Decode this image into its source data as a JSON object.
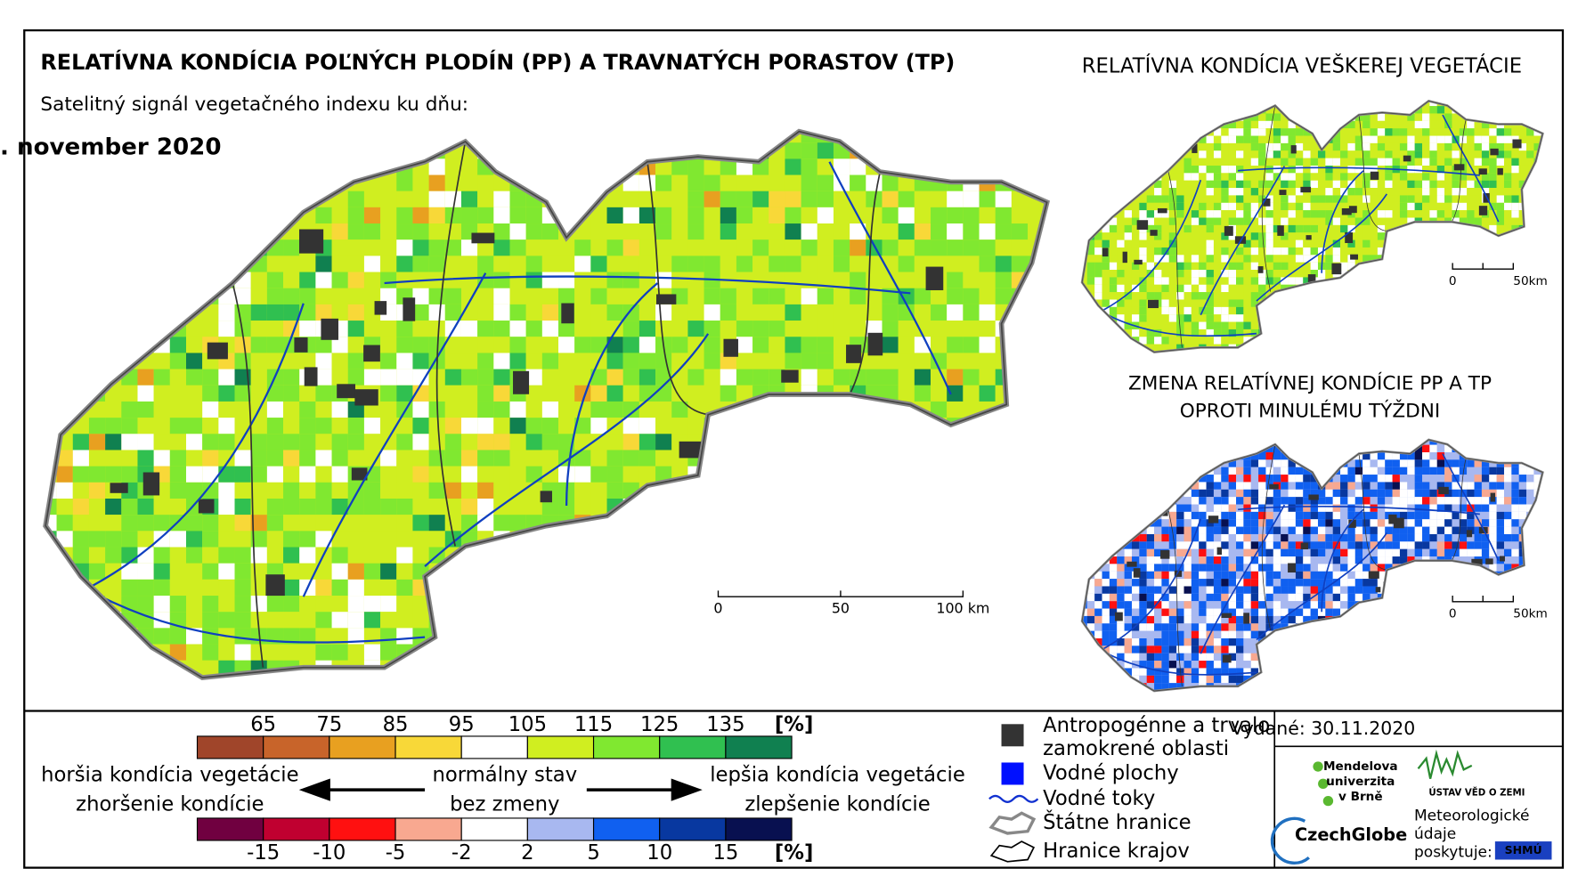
{
  "header": {
    "title": "RELATÍVNA KONDÍCIA POĽNÝCH PLODÍN (PP) A TRAVNATÝCH PORASTOV (TP)",
    "subtitle": "Satelitný signál vegetačného indexu ku dňu:",
    "date": ". november 2020"
  },
  "main_scale": [
    "0",
    "50",
    "100 km"
  ],
  "inset_top": {
    "title": "RELATÍVNA KONDÍCIA VEŠKEREJ VEGETÁCIE",
    "scale": [
      "0",
      "50km"
    ]
  },
  "inset_bottom": {
    "title": [
      "ZMENA RELATÍVNEJ KONDÍCIE PP A TP",
      "OPROTI MINULÉMU TÝŽDNI"
    ],
    "scale": [
      "0",
      "50km"
    ]
  },
  "legend": {
    "condition": {
      "ticks": [
        65,
        75,
        85,
        95,
        105,
        115,
        125,
        135
      ],
      "unit": "[%]",
      "colors": [
        "#a0452a",
        "#c8642a",
        "#e8a020",
        "#f8d838",
        "#ffffff",
        "#d0ee20",
        "#80e830",
        "#30c050",
        "#108050"
      ]
    },
    "change": {
      "ticks": [
        -15,
        -10,
        -5,
        -2,
        2,
        5,
        10,
        15
      ],
      "unit": "[%]",
      "colors": [
        "#700040",
        "#c00030",
        "#ff1010",
        "#f8a890",
        "#ffffff",
        "#a8b8f0",
        "#1060f0",
        "#0838a0",
        "#081050"
      ]
    },
    "left": [
      "horšia kondícia vegetácie",
      "zhoršenie kondície"
    ],
    "center": [
      "normálny stav",
      "bez zmeny"
    ],
    "right": [
      "lepšia kondícia vegetácie",
      "zlepšenie kondície"
    ],
    "items": [
      [
        "Antropogénne a trvalo",
        "zamokrené oblasti"
      ],
      [
        "Vodné plochy"
      ],
      [
        "Vodné toky"
      ],
      [
        "Štátne hranice"
      ],
      [
        "Hranice krajov"
      ]
    ]
  },
  "issued": "Vydané: 30.11.2020",
  "logos": {
    "mendelu": [
      "Mendelova",
      "univerzita",
      "v Brně"
    ],
    "ustav": "ÚSTAV VĚD O ZEMI",
    "czechglobe": "CzechGlobe",
    "meteo": [
      "Meteorologické",
      "údaje",
      "poskytuje:"
    ],
    "shmu": "SHMÚ"
  }
}
